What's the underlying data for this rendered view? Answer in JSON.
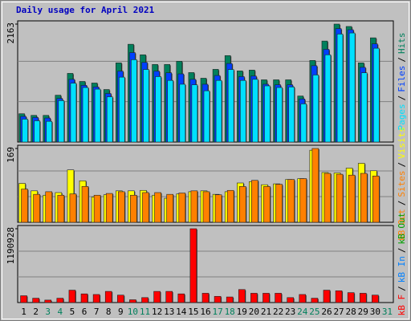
{
  "chart_data": [
    {
      "type": "bar",
      "title": "Daily usage for April 2021",
      "title_color": "#0000C0",
      "ylim": [
        0,
        2163
      ],
      "yticks": [
        2163
      ],
      "legend_separator": "/",
      "series": [
        {
          "name": "Hits",
          "color": "#00805C",
          "values": [
            519,
            489,
            489,
            859,
            1259,
            1111,
            1082,
            963,
            1452,
            1793,
            1600,
            1422,
            1422,
            1481,
            1274,
            1170,
            1333,
            1585,
            1304,
            1319,
            1141,
            1141,
            1141,
            844,
            1496,
            1852,
            2163,
            2119,
            1452,
            1911,
            null
          ]
        },
        {
          "name": "Files",
          "color": "#0040FF",
          "values": [
            470,
            450,
            440,
            800,
            1150,
            1040,
            1010,
            890,
            1300,
            1640,
            1460,
            1300,
            1270,
            1250,
            1150,
            1060,
            1220,
            1440,
            1200,
            1210,
            1060,
            1050,
            1050,
            790,
            1400,
            1700,
            2080,
            2060,
            1370,
            1800,
            null
          ]
        },
        {
          "name": "Pages",
          "color": "#00E0FF",
          "values": [
            420,
            390,
            380,
            760,
            1080,
            1000,
            970,
            830,
            1190,
            1510,
            1330,
            1200,
            1130,
            1060,
            1050,
            940,
            1130,
            1330,
            1130,
            1150,
            1030,
            1000,
            1010,
            700,
            1230,
            1600,
            1980,
            2000,
            1270,
            1720,
            null
          ]
        }
      ]
    },
    {
      "type": "bar",
      "ylim": [
        0,
        169
      ],
      "yticks": [
        169
      ],
      "legend_separator": "/",
      "series": [
        {
          "name": "Visits",
          "color": "#FFFF00",
          "values": [
            89,
            72,
            62,
            68,
            120,
            95,
            58,
            63,
            72,
            72,
            73,
            62,
            55,
            65,
            70,
            72,
            64,
            70,
            90,
            93,
            86,
            88,
            98,
            100,
            165,
            114,
            113,
            124,
            135,
            118,
            null
          ]
        },
        {
          "name": "Sites",
          "color": "#FF8000",
          "values": [
            76,
            64,
            70,
            62,
            65,
            82,
            62,
            66,
            70,
            62,
            68,
            68,
            64,
            67,
            72,
            70,
            63,
            73,
            82,
            96,
            82,
            87,
            98,
            100,
            169,
            112,
            110,
            108,
            112,
            106,
            null
          ]
        },
        {
          "name": "kB Out",
          "color": "#FF8000"
        }
      ]
    },
    {
      "type": "bar",
      "ylim": [
        0,
        1190928
      ],
      "yticks": [
        1190928
      ],
      "legend_separator": "/",
      "series": [
        {
          "name": "kB F",
          "color": "#FF0000",
          "values": [
            110000,
            70000,
            40000,
            70000,
            200000,
            140000,
            130000,
            180000,
            120000,
            45000,
            80000,
            180000,
            180000,
            140000,
            1190928,
            150000,
            100000,
            90000,
            210000,
            150000,
            150000,
            150000,
            80000,
            130000,
            70000,
            200000,
            190000,
            160000,
            150000,
            120000,
            null
          ]
        },
        {
          "name": "kB In",
          "color": "#0080FF"
        },
        {
          "name": "kB Out",
          "color": "#00A000"
        }
      ],
      "categories": [
        "1",
        "2",
        "3",
        "4",
        "5",
        "6",
        "7",
        "8",
        "9",
        "10",
        "11",
        "12",
        "13",
        "14",
        "15",
        "16",
        "17",
        "18",
        "19",
        "20",
        "21",
        "22",
        "23",
        "24",
        "25",
        "26",
        "27",
        "28",
        "29",
        "30",
        "31"
      ],
      "category_colors": [
        "#000",
        "#000",
        "#00805C",
        "#00805C",
        "#000",
        "#000",
        "#000",
        "#000",
        "#000",
        "#00805C",
        "#00805C",
        "#000",
        "#000",
        "#000",
        "#000",
        "#000",
        "#00805C",
        "#00805C",
        "#000",
        "#000",
        "#000",
        "#000",
        "#000",
        "#00805C",
        "#00805C",
        "#000",
        "#000",
        "#000",
        "#000",
        "#000",
        "#00805C"
      ]
    }
  ]
}
